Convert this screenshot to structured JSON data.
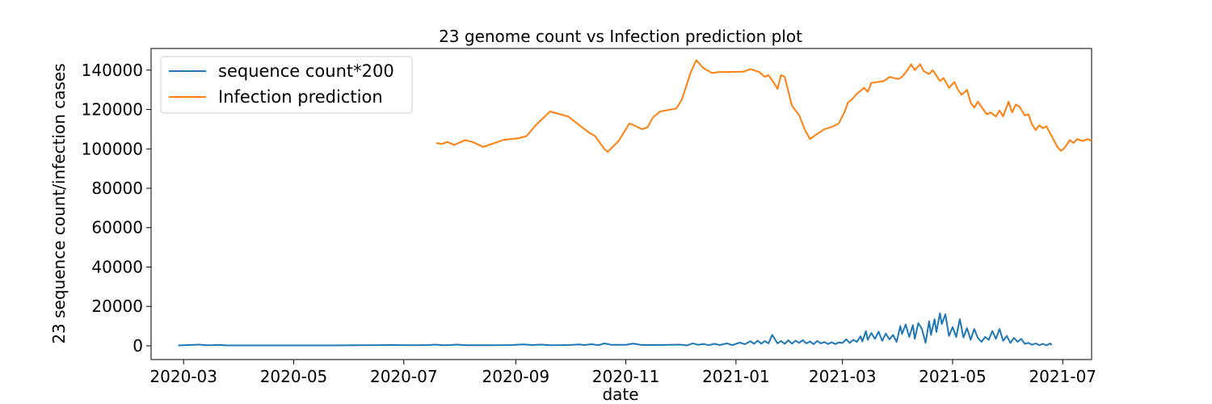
{
  "chart_data": {
    "type": "line",
    "title": "23 genome count vs Infection prediction plot",
    "xlabel": "date",
    "ylabel": "23 sequence count/infection cases",
    "xlim": [
      "2020-02-12",
      "2021-07-17"
    ],
    "ylim": [
      -7000,
      151000
    ],
    "x_ticks": [
      "2020-03",
      "2020-05",
      "2020-07",
      "2020-09",
      "2020-11",
      "2021-01",
      "2021-03",
      "2021-05",
      "2021-07"
    ],
    "y_ticks": [
      0,
      20000,
      40000,
      60000,
      80000,
      100000,
      120000,
      140000
    ],
    "grid": false,
    "legend_position": "top-left",
    "series": [
      {
        "name": "sequence count*200",
        "color": "#1f77b4",
        "points": [
          [
            "2020-02-27",
            200
          ],
          [
            "2020-03-10",
            600
          ],
          [
            "2020-03-13",
            300
          ],
          [
            "2020-03-22",
            400
          ],
          [
            "2020-03-25",
            200
          ],
          [
            "2020-04-20",
            200
          ],
          [
            "2020-05-20",
            200
          ],
          [
            "2020-06-25",
            400
          ],
          [
            "2020-07-05",
            300
          ],
          [
            "2020-07-15",
            400
          ],
          [
            "2020-07-18",
            600
          ],
          [
            "2020-07-23",
            300
          ],
          [
            "2020-07-27",
            400
          ],
          [
            "2020-07-30",
            600
          ],
          [
            "2020-08-05",
            300
          ],
          [
            "2020-08-20",
            300
          ],
          [
            "2020-08-30",
            400
          ],
          [
            "2020-09-05",
            700
          ],
          [
            "2020-09-10",
            400
          ],
          [
            "2020-09-15",
            600
          ],
          [
            "2020-09-20",
            300
          ],
          [
            "2020-10-01",
            400
          ],
          [
            "2020-10-06",
            700
          ],
          [
            "2020-10-09",
            400
          ],
          [
            "2020-10-13",
            800
          ],
          [
            "2020-10-17",
            300
          ],
          [
            "2020-10-20",
            1200
          ],
          [
            "2020-10-24",
            500
          ],
          [
            "2020-11-01",
            500
          ],
          [
            "2020-11-05",
            1100
          ],
          [
            "2020-11-10",
            400
          ],
          [
            "2020-11-18",
            400
          ],
          [
            "2020-11-25",
            500
          ],
          [
            "2020-12-01",
            600
          ],
          [
            "2020-12-05",
            200
          ],
          [
            "2020-12-08",
            1200
          ],
          [
            "2020-12-11",
            500
          ],
          [
            "2020-12-14",
            900
          ],
          [
            "2020-12-17",
            300
          ],
          [
            "2020-12-20",
            1000
          ],
          [
            "2020-12-23",
            400
          ],
          [
            "2020-12-27",
            1200
          ],
          [
            "2020-12-30",
            300
          ],
          [
            "2021-01-03",
            1600
          ],
          [
            "2021-01-06",
            800
          ],
          [
            "2021-01-09",
            2300
          ],
          [
            "2021-01-11",
            1000
          ],
          [
            "2021-01-13",
            2600
          ],
          [
            "2021-01-15",
            1100
          ],
          [
            "2021-01-17",
            2400
          ],
          [
            "2021-01-19",
            1200
          ],
          [
            "2021-01-21",
            5500
          ],
          [
            "2021-01-22",
            4200
          ],
          [
            "2021-01-24",
            1200
          ],
          [
            "2021-01-26",
            2400
          ],
          [
            "2021-01-28",
            1000
          ],
          [
            "2021-01-30",
            2800
          ],
          [
            "2021-02-01",
            1100
          ],
          [
            "2021-02-03",
            2600
          ],
          [
            "2021-02-05",
            1500
          ],
          [
            "2021-02-07",
            2900
          ],
          [
            "2021-02-09",
            1200
          ],
          [
            "2021-02-11",
            2200
          ],
          [
            "2021-02-13",
            800
          ],
          [
            "2021-02-15",
            2500
          ],
          [
            "2021-02-17",
            1200
          ],
          [
            "2021-02-19",
            1900
          ],
          [
            "2021-02-21",
            900
          ],
          [
            "2021-02-23",
            1800
          ],
          [
            "2021-02-25",
            900
          ],
          [
            "2021-02-27",
            1700
          ],
          [
            "2021-03-01",
            1400
          ],
          [
            "2021-03-03",
            3300
          ],
          [
            "2021-03-05",
            1500
          ],
          [
            "2021-03-07",
            3000
          ],
          [
            "2021-03-09",
            2000
          ],
          [
            "2021-03-11",
            4800
          ],
          [
            "2021-03-12",
            2200
          ],
          [
            "2021-03-14",
            7500
          ],
          [
            "2021-03-15",
            3000
          ],
          [
            "2021-03-17",
            6500
          ],
          [
            "2021-03-19",
            3500
          ],
          [
            "2021-03-21",
            7200
          ],
          [
            "2021-03-23",
            2500
          ],
          [
            "2021-03-25",
            6200
          ],
          [
            "2021-03-27",
            3200
          ],
          [
            "2021-03-29",
            5500
          ],
          [
            "2021-03-31",
            2000
          ],
          [
            "2021-04-02",
            10000
          ],
          [
            "2021-04-03",
            6000
          ],
          [
            "2021-04-05",
            10800
          ],
          [
            "2021-04-07",
            4500
          ],
          [
            "2021-04-09",
            10500
          ],
          [
            "2021-04-10",
            3500
          ],
          [
            "2021-04-12",
            11500
          ],
          [
            "2021-04-14",
            8500
          ],
          [
            "2021-04-16",
            1500
          ],
          [
            "2021-04-18",
            12500
          ],
          [
            "2021-04-19",
            5500
          ],
          [
            "2021-04-21",
            13500
          ],
          [
            "2021-04-22",
            7000
          ],
          [
            "2021-04-24",
            16500
          ],
          [
            "2021-04-25",
            11000
          ],
          [
            "2021-04-27",
            16000
          ],
          [
            "2021-04-29",
            5000
          ],
          [
            "2021-05-01",
            9500
          ],
          [
            "2021-05-03",
            4500
          ],
          [
            "2021-05-05",
            13500
          ],
          [
            "2021-05-07",
            4200
          ],
          [
            "2021-05-09",
            9000
          ],
          [
            "2021-05-11",
            3000
          ],
          [
            "2021-05-13",
            8500
          ],
          [
            "2021-05-15",
            4000
          ],
          [
            "2021-05-17",
            2000
          ],
          [
            "2021-05-19",
            4500
          ],
          [
            "2021-05-21",
            3000
          ],
          [
            "2021-05-23",
            7500
          ],
          [
            "2021-05-25",
            3500
          ],
          [
            "2021-05-27",
            8500
          ],
          [
            "2021-05-29",
            2500
          ],
          [
            "2021-05-31",
            5000
          ],
          [
            "2021-06-02",
            1500
          ],
          [
            "2021-06-04",
            4000
          ],
          [
            "2021-06-06",
            2000
          ],
          [
            "2021-06-08",
            3500
          ],
          [
            "2021-06-10",
            1000
          ],
          [
            "2021-06-12",
            1500
          ],
          [
            "2021-06-14",
            500
          ],
          [
            "2021-06-16",
            1200
          ],
          [
            "2021-06-18",
            300
          ],
          [
            "2021-06-20",
            1000
          ],
          [
            "2021-06-22",
            200
          ],
          [
            "2021-06-24",
            1200
          ],
          [
            "2021-06-25",
            400
          ]
        ]
      },
      {
        "name": "Infection prediction",
        "color": "#ff7f0e",
        "points": [
          [
            "2020-07-19",
            103000
          ],
          [
            "2020-07-22",
            102500
          ],
          [
            "2020-07-25",
            103500
          ],
          [
            "2020-07-29",
            102000
          ],
          [
            "2020-08-04",
            104500
          ],
          [
            "2020-08-08",
            103500
          ],
          [
            "2020-08-14",
            101000
          ],
          [
            "2020-08-25",
            104500
          ],
          [
            "2020-09-03",
            105500
          ],
          [
            "2020-09-07",
            106500
          ],
          [
            "2020-09-12",
            112000
          ],
          [
            "2020-09-20",
            119000
          ],
          [
            "2020-09-30",
            116500
          ],
          [
            "2020-10-12",
            108000
          ],
          [
            "2020-10-15",
            106500
          ],
          [
            "2020-10-20",
            100000
          ],
          [
            "2020-10-22",
            98500
          ],
          [
            "2020-10-28",
            104000
          ],
          [
            "2020-11-03",
            113000
          ],
          [
            "2020-11-10",
            110000
          ],
          [
            "2020-11-13",
            111000
          ],
          [
            "2020-11-16",
            116000
          ],
          [
            "2020-11-20",
            119000
          ],
          [
            "2020-11-29",
            120500
          ],
          [
            "2020-12-02",
            125000
          ],
          [
            "2020-12-07",
            139000
          ],
          [
            "2020-12-10",
            145000
          ],
          [
            "2020-12-14",
            141000
          ],
          [
            "2020-12-19",
            138500
          ],
          [
            "2020-12-22",
            139000
          ],
          [
            "2021-01-05",
            139200
          ],
          [
            "2021-01-09",
            140500
          ],
          [
            "2021-01-14",
            139000
          ],
          [
            "2021-01-17",
            136500
          ],
          [
            "2021-01-19",
            137500
          ],
          [
            "2021-01-22",
            133500
          ],
          [
            "2021-01-24",
            130500
          ],
          [
            "2021-01-26",
            137500
          ],
          [
            "2021-01-28",
            136500
          ],
          [
            "2021-02-01",
            122000
          ],
          [
            "2021-02-05",
            117000
          ],
          [
            "2021-02-08",
            110000
          ],
          [
            "2021-02-11",
            105000
          ],
          [
            "2021-02-14",
            107000
          ],
          [
            "2021-02-19",
            110000
          ],
          [
            "2021-02-24",
            111500
          ],
          [
            "2021-02-27",
            113000
          ],
          [
            "2021-03-02",
            118500
          ],
          [
            "2021-03-04",
            123500
          ],
          [
            "2021-03-06",
            125000
          ],
          [
            "2021-03-09",
            128000
          ],
          [
            "2021-03-13",
            131000
          ],
          [
            "2021-03-15",
            129000
          ],
          [
            "2021-03-17",
            133500
          ],
          [
            "2021-03-24",
            134500
          ],
          [
            "2021-03-27",
            136500
          ],
          [
            "2021-04-01",
            135500
          ],
          [
            "2021-04-03",
            136500
          ],
          [
            "2021-04-06",
            140000
          ],
          [
            "2021-04-08",
            143000
          ],
          [
            "2021-04-10",
            140000
          ],
          [
            "2021-04-13",
            143000
          ],
          [
            "2021-04-15",
            139500
          ],
          [
            "2021-04-18",
            138000
          ],
          [
            "2021-04-20",
            140000
          ],
          [
            "2021-04-24",
            134500
          ],
          [
            "2021-04-26",
            136000
          ],
          [
            "2021-04-29",
            131000
          ],
          [
            "2021-05-02",
            134000
          ],
          [
            "2021-05-04",
            130000
          ],
          [
            "2021-05-06",
            127500
          ],
          [
            "2021-05-09",
            130000
          ],
          [
            "2021-05-11",
            123500
          ],
          [
            "2021-05-13",
            121000
          ],
          [
            "2021-05-15",
            124000
          ],
          [
            "2021-05-18",
            120000
          ],
          [
            "2021-05-20",
            117500
          ],
          [
            "2021-05-22",
            118500
          ],
          [
            "2021-05-25",
            116500
          ],
          [
            "2021-05-27",
            119500
          ],
          [
            "2021-05-29",
            116500
          ],
          [
            "2021-06-01",
            124000
          ],
          [
            "2021-06-03",
            118500
          ],
          [
            "2021-06-05",
            122500
          ],
          [
            "2021-06-07",
            121500
          ],
          [
            "2021-06-10",
            117000
          ],
          [
            "2021-06-12",
            117500
          ],
          [
            "2021-06-14",
            112500
          ],
          [
            "2021-06-16",
            109500
          ],
          [
            "2021-06-18",
            112000
          ],
          [
            "2021-06-20",
            110500
          ],
          [
            "2021-06-22",
            111500
          ],
          [
            "2021-06-24",
            108000
          ],
          [
            "2021-06-26",
            104500
          ],
          [
            "2021-06-28",
            101000
          ],
          [
            "2021-06-30",
            99000
          ],
          [
            "2021-07-02",
            100500
          ],
          [
            "2021-07-05",
            104500
          ],
          [
            "2021-07-07",
            103000
          ],
          [
            "2021-07-09",
            105000
          ],
          [
            "2021-07-12",
            104000
          ],
          [
            "2021-07-15",
            105000
          ],
          [
            "2021-07-17",
            104000
          ]
        ]
      }
    ]
  }
}
